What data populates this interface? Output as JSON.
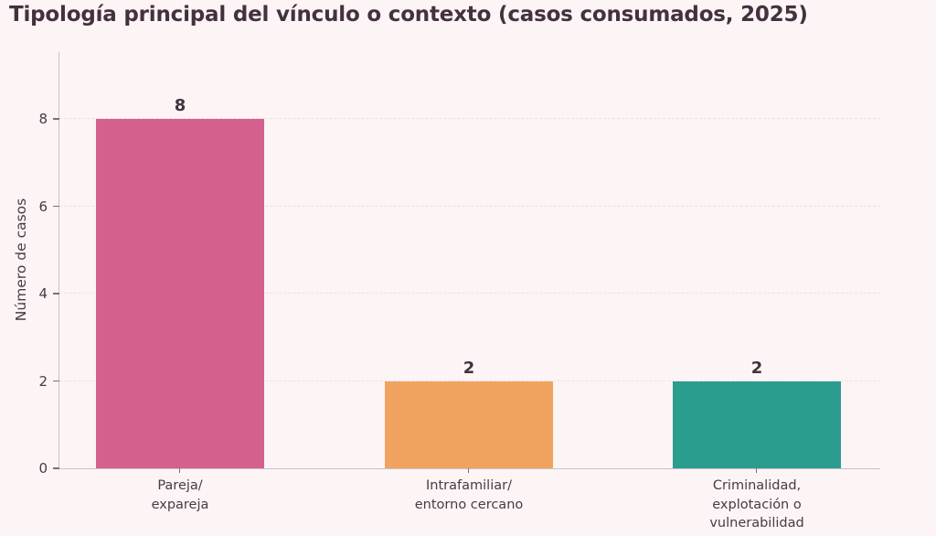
{
  "title": "Tipología principal del vínculo o contexto (casos consumados, 2025)",
  "colors": {
    "background": "#fdf4f6",
    "title_text": "#43313d",
    "axis_text": "#4a3a42",
    "value_label_text": "#3e323c",
    "spine": "#ccc0c7",
    "gridline": "#eee0e4"
  },
  "chart_data": {
    "type": "bar",
    "title": "Tipología principal del vínculo o contexto (casos consumados, 2025)",
    "categories": [
      "Pareja/\nexpareja",
      "Intrafamiliar/\nentorno cercano",
      "Criminalidad,\nexplotación o\nvulnerabilidad"
    ],
    "values": [
      8,
      2,
      2
    ],
    "value_labels": [
      "8",
      "2",
      "2"
    ],
    "bar_colors": [
      "#d4608e",
      "#f0a35f",
      "#2a9d8f"
    ],
    "xlabel": "",
    "ylabel": "Número de casos",
    "yticks": [
      0,
      2,
      4,
      6,
      8
    ],
    "ylim": [
      0,
      9.5
    ],
    "grid": "horizontal-dashed",
    "legend": "none"
  }
}
